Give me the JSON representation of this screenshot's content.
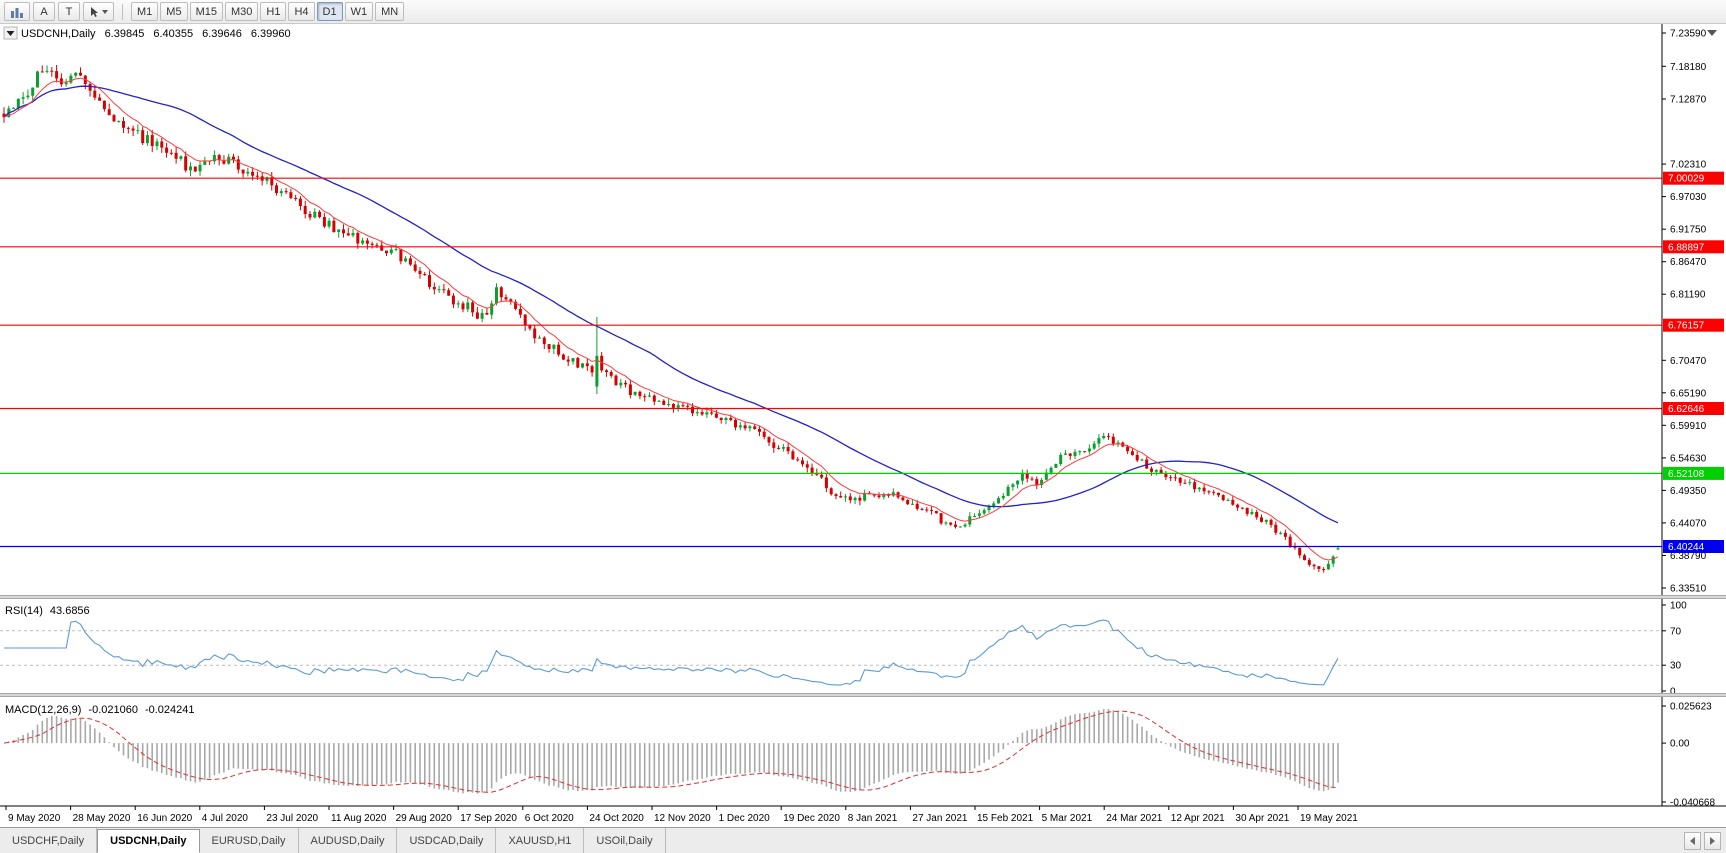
{
  "toolbar": {
    "buttons": [
      {
        "name": "charts-grid",
        "label": ""
      },
      {
        "name": "annotation-a",
        "label": "A"
      },
      {
        "name": "text-tool",
        "label": "T"
      },
      {
        "name": "pointer-tool",
        "label": ""
      }
    ],
    "timeframes": [
      {
        "label": "M1"
      },
      {
        "label": "M5"
      },
      {
        "label": "M15"
      },
      {
        "label": "M30"
      },
      {
        "label": "H1"
      },
      {
        "label": "H4"
      },
      {
        "label": "D1"
      },
      {
        "label": "W1"
      },
      {
        "label": "MN"
      }
    ],
    "active_timeframe": "D1"
  },
  "main_chart": {
    "symbol": "USDCNH,Daily",
    "open": "6.39845",
    "high": "6.40355",
    "low": "6.39646",
    "close": "6.39960"
  },
  "rsi_panel": {
    "label": "RSI(14)",
    "value": "43.6856",
    "axis": [
      "100",
      "70",
      "30",
      "0"
    ],
    "levels": [
      70,
      30
    ],
    "line_color": "#5b9bd5"
  },
  "macd_panel": {
    "label": "MACD(12,26,9)",
    "main_value": "-0.021060",
    "signal_value": "-0.024241",
    "axis": [
      {
        "label": "0.025623",
        "value": 0.025623
      },
      {
        "label": "0.00",
        "value": 0.0
      },
      {
        "label": "-0.040668",
        "value": -0.040668
      }
    ],
    "histogram_color": "#a8a8a8",
    "signal_color": "#e03030"
  },
  "time_axis": {
    "labels": [
      "9 May 2020",
      "28 May 2020",
      "16 Jun 2020",
      "4 Jul 2020",
      "23 Jul 2020",
      "11 Aug 2020",
      "29 Aug 2020",
      "17 Sep 2020",
      "6 Oct 2020",
      "24 Oct 2020",
      "12 Nov 2020",
      "1 Dec 2020",
      "19 Dec 2020",
      "8 Jan 2021",
      "27 Jan 2021",
      "15 Feb 2021",
      "5 Mar 2021",
      "24 Mar 2021",
      "12 Apr 2021",
      "30 Apr 2021",
      "19 May 2021"
    ]
  },
  "tabs": {
    "items": [
      {
        "label": "USDCHF,Daily",
        "active": false
      },
      {
        "label": "USDCNH,Daily",
        "active": true
      },
      {
        "label": "EURUSD,Daily",
        "active": false
      },
      {
        "label": "AUDUSD,Daily",
        "active": false
      },
      {
        "label": "USDCAD,Daily",
        "active": false
      },
      {
        "label": "XAUUSD,H1",
        "active": false
      },
      {
        "label": "USOil,Daily",
        "active": false
      }
    ]
  },
  "chart_data": {
    "type": "candlestick",
    "symbol": "USDCNH",
    "timeframe": "D1",
    "ylim": [
      6.3351,
      7.2359
    ],
    "axis_ticks": [
      "7.23590",
      "7.18180",
      "7.12870",
      "7.02310",
      "6.97030",
      "6.91750",
      "6.86470",
      "6.81190",
      "6.70470",
      "6.65190",
      "6.59910",
      "6.54630",
      "6.49350",
      "6.44070",
      "6.38790",
      "6.33510"
    ],
    "levels": [
      {
        "value": "7.00029",
        "color": "#ff0000",
        "text_color": "#ffffff"
      },
      {
        "value": "6.88897",
        "color": "#ff0000",
        "text_color": "#ffffff"
      },
      {
        "value": "6.76157",
        "color": "#ff0000",
        "text_color": "#ffffff"
      },
      {
        "value": "6.62646",
        "color": "#ff0000",
        "text_color": "#ffffff"
      },
      {
        "value": "6.52108",
        "color": "#00d000",
        "text_color": "#ffffff"
      },
      {
        "value": "6.40244",
        "color": "#0000ee",
        "text_color": "#ffffff"
      }
    ],
    "colors": {
      "up": "#0ba02e",
      "down": "#d50000",
      "ma_fast": "#ff3b3b",
      "ma_slow": "#2222cc"
    },
    "candle_count": 280,
    "price_path": [
      [
        0.0,
        7.105
      ],
      [
        0.015,
        7.135
      ],
      [
        0.03,
        7.182
      ],
      [
        0.042,
        7.158
      ],
      [
        0.055,
        7.168
      ],
      [
        0.07,
        7.12
      ],
      [
        0.085,
        7.098
      ],
      [
        0.095,
        7.075
      ],
      [
        0.11,
        7.06
      ],
      [
        0.125,
        7.045
      ],
      [
        0.143,
        7.005
      ],
      [
        0.16,
        7.038
      ],
      [
        0.175,
        7.02
      ],
      [
        0.19,
        7.005
      ],
      [
        0.21,
        6.975
      ],
      [
        0.225,
        6.95
      ],
      [
        0.238,
        6.932
      ],
      [
        0.26,
        6.906
      ],
      [
        0.286,
        6.888
      ],
      [
        0.3,
        6.87
      ],
      [
        0.31,
        6.843
      ],
      [
        0.333,
        6.808
      ],
      [
        0.35,
        6.788
      ],
      [
        0.36,
        6.772
      ],
      [
        0.37,
        6.82
      ],
      [
        0.381,
        6.792
      ],
      [
        0.4,
        6.736
      ],
      [
        0.415,
        6.72
      ],
      [
        0.429,
        6.7
      ],
      [
        0.445,
        6.69
      ],
      [
        0.46,
        6.665
      ],
      [
        0.476,
        6.647
      ],
      [
        0.5,
        6.629
      ],
      [
        0.524,
        6.62
      ],
      [
        0.545,
        6.605
      ],
      [
        0.56,
        6.59
      ],
      [
        0.571,
        6.575
      ],
      [
        0.59,
        6.549
      ],
      [
        0.605,
        6.53
      ],
      [
        0.619,
        6.495
      ],
      [
        0.635,
        6.477
      ],
      [
        0.65,
        6.487
      ],
      [
        0.667,
        6.486
      ],
      [
        0.68,
        6.47
      ],
      [
        0.695,
        6.455
      ],
      [
        0.714,
        6.432
      ],
      [
        0.73,
        6.455
      ],
      [
        0.745,
        6.478
      ],
      [
        0.762,
        6.52
      ],
      [
        0.775,
        6.505
      ],
      [
        0.79,
        6.545
      ],
      [
        0.81,
        6.56
      ],
      [
        0.825,
        6.585
      ],
      [
        0.84,
        6.56
      ],
      [
        0.857,
        6.532
      ],
      [
        0.875,
        6.515
      ],
      [
        0.89,
        6.5
      ],
      [
        0.905,
        6.486
      ],
      [
        0.92,
        6.47
      ],
      [
        0.935,
        6.458
      ],
      [
        0.952,
        6.433
      ],
      [
        0.965,
        6.405
      ],
      [
        0.975,
        6.378
      ],
      [
        0.985,
        6.362
      ],
      [
        0.993,
        6.372
      ],
      [
        1.0,
        6.3996
      ]
    ],
    "spike_candle": {
      "t": 0.445,
      "open": 6.662,
      "high": 6.775,
      "low": 6.65,
      "close": 6.712
    },
    "last_ohlc": {
      "open": 6.39845,
      "high": 6.40355,
      "low": 6.39646,
      "close": 6.3996
    },
    "indicators": {
      "ma_fast_period": 8,
      "ma_slow_period": 34,
      "rsi_period": 14,
      "macd": [
        12,
        26,
        9
      ]
    }
  }
}
